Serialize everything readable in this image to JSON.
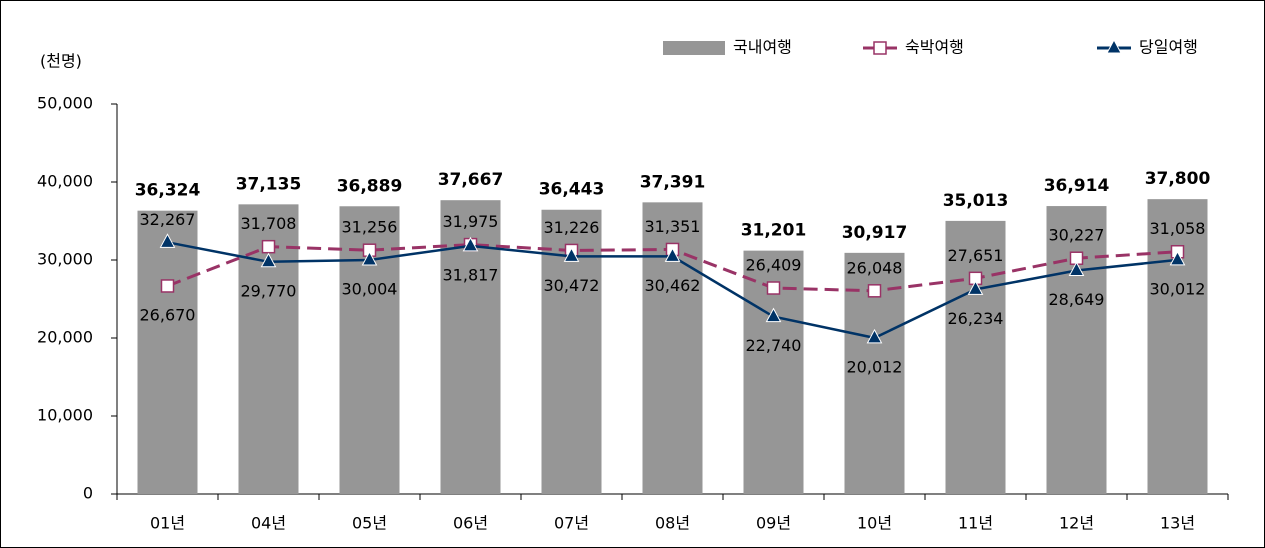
{
  "chart_data": {
    "type": "bar-line",
    "y_axis_label": "(천명)",
    "categories": [
      "01년",
      "04년",
      "05년",
      "06년",
      "07년",
      "08년",
      "09년",
      "10년",
      "11년",
      "12년",
      "13년"
    ],
    "series": [
      {
        "name": "국내여행",
        "type": "bar",
        "color": "#969696",
        "values": [
          36324,
          37135,
          36889,
          37667,
          36443,
          37391,
          31201,
          30917,
          35013,
          36914,
          37800
        ],
        "value_labels": [
          "36,324",
          "37,135",
          "36,889",
          "37,667",
          "36,443",
          "37,391",
          "31,201",
          "30,917",
          "35,013",
          "36,914",
          "37,800"
        ]
      },
      {
        "name": "숙박여행",
        "type": "line",
        "color": "#993366",
        "dashed": true,
        "marker": "square",
        "values": [
          26670,
          31708,
          31256,
          31975,
          31226,
          31351,
          26409,
          26048,
          27651,
          30227,
          31058
        ],
        "value_labels": [
          "26,670",
          "31,708",
          "31,256",
          "31,975",
          "31,226",
          "31,351",
          "26,409",
          "26,048",
          "27,651",
          "30,227",
          "31,058"
        ]
      },
      {
        "name": "당일여행",
        "type": "line",
        "color": "#003366",
        "dashed": false,
        "marker": "triangle",
        "values": [
          32267,
          29770,
          30004,
          31817,
          30472,
          30462,
          22740,
          20012,
          26234,
          28649,
          30012
        ],
        "value_labels": [
          "32,267",
          "29,770",
          "30,004",
          "31,817",
          "30,472",
          "30,462",
          "22,740",
          "20,012",
          "26,234",
          "28,649",
          "30,012"
        ]
      }
    ],
    "ylim": [
      0,
      50000
    ],
    "yticks": [
      0,
      {
        "value": 10000,
        "label": "10,000"
      },
      {
        "value": 20000,
        "label": "20,000"
      },
      {
        "value": 30000,
        "label": "30,000"
      },
      {
        "value": 40000,
        "label": "40,000"
      },
      {
        "value": 50000,
        "label": "50,000"
      }
    ],
    "grid": false,
    "legend": "top-right"
  }
}
